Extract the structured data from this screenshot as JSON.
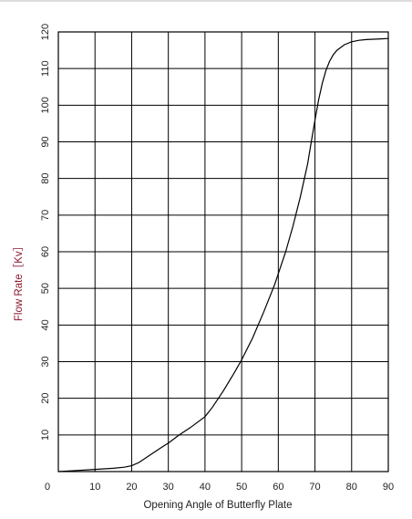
{
  "chart_data": {
    "type": "line",
    "title": "",
    "xlabel": "Opening Angle of Butterfly Plate",
    "ylabel": "Flow Rate［Kv］",
    "xlim": [
      0,
      90
    ],
    "ylim": [
      0,
      120
    ],
    "x_ticks": [
      "0",
      "10",
      "20",
      "30",
      "40",
      "50",
      "60",
      "70",
      "80",
      "90"
    ],
    "y_ticks": [
      "10",
      "20",
      "30",
      "40",
      "50",
      "60",
      "70",
      "80",
      "90",
      "100",
      "110",
      "120"
    ],
    "grid": true,
    "line_color": "#000000",
    "ylabel_color": "#8b1a2e",
    "series": [
      {
        "x": [
          0,
          5,
          10,
          15,
          18,
          20,
          22,
          25,
          28,
          30,
          33,
          36,
          40,
          42,
          45,
          48,
          50,
          53,
          56,
          59,
          62,
          64,
          66,
          68,
          69,
          70,
          71,
          72,
          73,
          74,
          75,
          76,
          78,
          80,
          82,
          84,
          86,
          88,
          90
        ],
        "y": [
          0,
          0.3,
          0.6,
          0.9,
          1.2,
          1.6,
          2.5,
          4.5,
          6.5,
          7.8,
          10,
          12,
          15,
          17.5,
          22,
          27,
          30.5,
          36.5,
          43.5,
          51,
          60,
          67,
          75,
          84,
          90,
          96,
          101.5,
          106,
          109.5,
          112,
          113.8,
          115,
          116.5,
          117.3,
          117.7,
          117.9,
          118,
          118.1,
          118.2
        ]
      }
    ]
  }
}
